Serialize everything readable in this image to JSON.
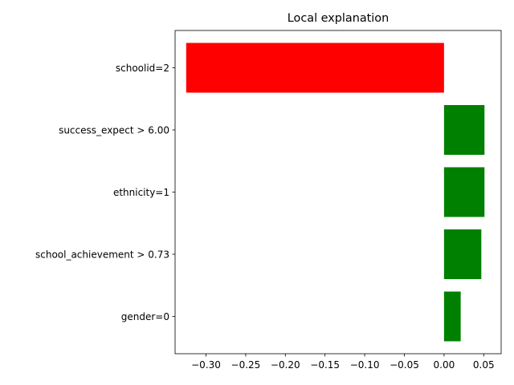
{
  "chart_data": {
    "type": "bar",
    "orientation": "horizontal",
    "title": "Local explanation",
    "xlabel": "",
    "ylabel": "",
    "categories": [
      "schoolid=2",
      "success_expect > 6.00",
      "ethnicity=1",
      "school_achievement > 0.73",
      "gender=0"
    ],
    "values": [
      -0.325,
      0.051,
      0.051,
      0.047,
      0.021
    ],
    "xlim": [
      -0.339,
      0.072
    ],
    "xticks": [
      -0.3,
      -0.25,
      -0.2,
      -0.15,
      -0.1,
      -0.05,
      0.0,
      0.05
    ],
    "xtick_labels": [
      "−0.30",
      "−0.25",
      "−0.20",
      "−0.15",
      "−0.10",
      "−0.05",
      "0.00",
      "0.05"
    ],
    "colors": {
      "positive": "#008000",
      "negative": "#ff0000"
    },
    "grid": false,
    "legend": "none"
  }
}
